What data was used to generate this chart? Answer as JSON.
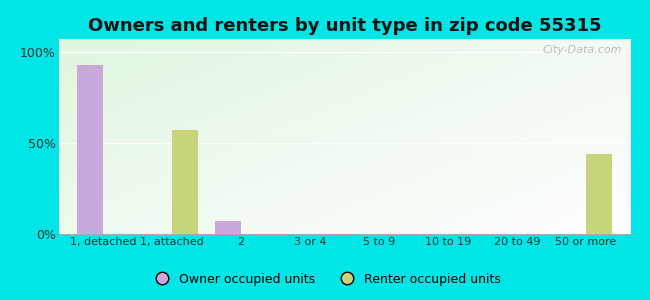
{
  "title": "Owners and renters by unit type in zip code 55315",
  "categories": [
    "1, detached",
    "1, attached",
    "2",
    "3 or 4",
    "5 to 9",
    "10 to 19",
    "20 to 49",
    "50 or more"
  ],
  "owner_values": [
    93,
    0,
    7,
    0,
    0,
    0,
    0,
    0
  ],
  "renter_values": [
    0,
    57,
    0,
    0,
    0,
    0,
    0,
    44
  ],
  "owner_color": "#c9a8dc",
  "renter_color": "#c8d47a",
  "background_outer": "#00e5e5",
  "yticks": [
    0,
    50,
    100
  ],
  "ytick_labels": [
    "0%",
    "50%",
    "100%"
  ],
  "ylim": [
    0,
    107
  ],
  "bar_width": 0.38,
  "watermark": "City-Data.com",
  "legend_owner": "Owner occupied units",
  "legend_renter": "Renter occupied units",
  "title_fontsize": 13,
  "tick_fontsize": 8,
  "legend_fontsize": 9
}
